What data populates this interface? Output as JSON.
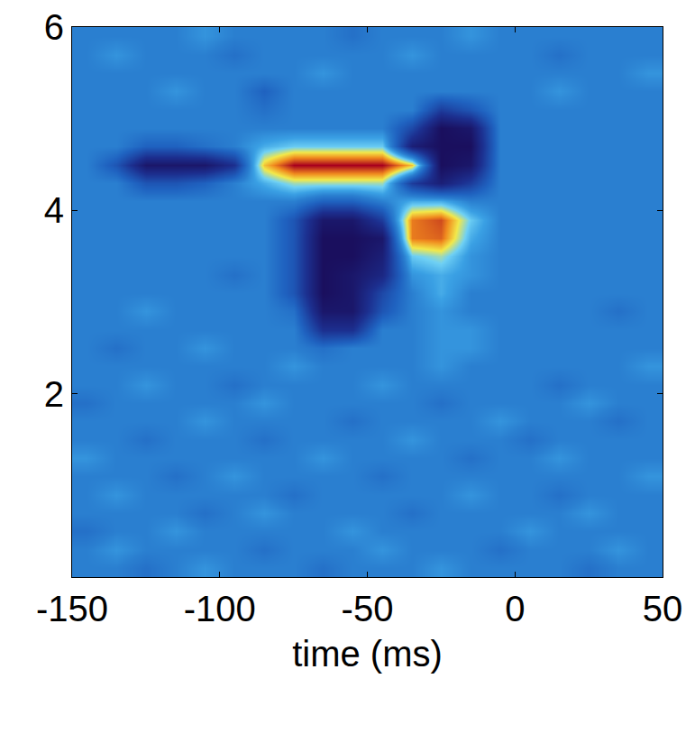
{
  "chart_data": {
    "type": "heatmap",
    "x_label": "time (ms)",
    "x": [
      -145,
      -135,
      -125,
      -115,
      -105,
      -95,
      -85,
      -75,
      -65,
      -55,
      -45,
      -35,
      -25,
      -15,
      -5,
      5,
      15,
      25,
      35,
      45
    ],
    "y": [
      0.1,
      0.3,
      0.5,
      0.7,
      0.9,
      1.1,
      1.3,
      1.5,
      1.7,
      1.9,
      2.1,
      2.3,
      2.5,
      2.7,
      2.9,
      3.1,
      3.3,
      3.5,
      3.7,
      3.9,
      4.1,
      4.3,
      4.5,
      4.7,
      4.9,
      5.1,
      5.3,
      5.5,
      5.7,
      5.9
    ],
    "z": [
      [
        0,
        0,
        -0.1,
        0,
        0.1,
        0,
        0,
        0,
        -0.1,
        0,
        0,
        0,
        0.1,
        0,
        0,
        0,
        0,
        -0.1,
        0,
        0
      ],
      [
        0,
        0.1,
        0,
        0,
        0,
        0,
        -0.1,
        0,
        0,
        0,
        0.1,
        0,
        0,
        0,
        -0.1,
        0,
        0,
        0,
        0.1,
        0
      ],
      [
        -0.1,
        0,
        0,
        0.1,
        0,
        0,
        0,
        0,
        0,
        0.1,
        0,
        0,
        0,
        0,
        0,
        0.1,
        0,
        0,
        0,
        0
      ],
      [
        0,
        0,
        0,
        0,
        -0.1,
        0,
        0.1,
        0,
        0,
        0,
        0,
        -0.1,
        0,
        0,
        0,
        0,
        0,
        0.1,
        0,
        0
      ],
      [
        0,
        0.1,
        0,
        0,
        0,
        0,
        0,
        -0.1,
        0,
        0,
        0,
        0,
        0,
        0.1,
        0,
        0,
        -0.1,
        0,
        0,
        0
      ],
      [
        0,
        0,
        0,
        -0.1,
        0,
        0.1,
        0,
        0,
        0,
        0,
        -0.1,
        0,
        0,
        0,
        0,
        0,
        0,
        0,
        0,
        0.1
      ],
      [
        0.1,
        0,
        0,
        0,
        0,
        0,
        0,
        0,
        0.1,
        0,
        0,
        0,
        0,
        -0.1,
        0,
        0,
        0.1,
        0,
        0,
        0
      ],
      [
        0,
        0,
        -0.1,
        0,
        0,
        0,
        -0.1,
        0,
        0,
        0,
        0,
        0.1,
        0,
        0,
        0,
        -0.1,
        0,
        0,
        0,
        0
      ],
      [
        0,
        0,
        0,
        0,
        0.1,
        0,
        0,
        0,
        0,
        -0.1,
        0,
        0,
        0,
        0,
        0.1,
        0,
        0,
        0,
        -0.1,
        0
      ],
      [
        -0.1,
        0,
        0,
        0,
        0,
        0,
        0.1,
        0,
        0,
        0,
        0,
        0,
        -0.1,
        0,
        0,
        0,
        0,
        0.1,
        0,
        0
      ],
      [
        0,
        0,
        0.1,
        0,
        0,
        -0.1,
        0,
        0,
        0,
        0,
        0.1,
        0,
        0,
        0,
        0,
        0,
        -0.1,
        0,
        0,
        0
      ],
      [
        0,
        0,
        0,
        0,
        0,
        0,
        0,
        0.1,
        0,
        0,
        0,
        0,
        0.1,
        0,
        0,
        0,
        0,
        0,
        0,
        0.1
      ],
      [
        0,
        -0.1,
        0,
        0,
        0.1,
        0,
        0,
        0,
        -0.1,
        0,
        0,
        0,
        0.1,
        0.1,
        0,
        0,
        0,
        0,
        0,
        0
      ],
      [
        0,
        0,
        0,
        0,
        0,
        0,
        0,
        0,
        -0.6,
        -0.6,
        0,
        0,
        0.1,
        0.1,
        0,
        0,
        0,
        0,
        0,
        0
      ],
      [
        0,
        0,
        0.1,
        0,
        0,
        0,
        0,
        -0.1,
        -0.9,
        -0.9,
        -0.3,
        0,
        0.1,
        0,
        0,
        0,
        0,
        0,
        -0.1,
        0
      ],
      [
        0,
        0,
        0,
        0,
        0,
        0,
        0,
        -0.3,
        -1,
        -0.9,
        -0.4,
        0,
        0.2,
        0,
        0,
        0,
        0,
        0,
        0,
        0
      ],
      [
        0,
        0,
        0,
        0,
        0,
        -0.1,
        0,
        -0.3,
        -1,
        -0.9,
        -0.7,
        0.1,
        0.2,
        0.1,
        0,
        0,
        0,
        0,
        0,
        0
      ],
      [
        0,
        0,
        0,
        0,
        0,
        0,
        0,
        -0.3,
        -1,
        -1,
        -0.8,
        0.3,
        0.4,
        0.1,
        0,
        0,
        0,
        0,
        0,
        0
      ],
      [
        0,
        0,
        0,
        0,
        0,
        0,
        0,
        -0.3,
        -1,
        -1,
        -0.9,
        0.75,
        0.8,
        0.2,
        0,
        0,
        0,
        0,
        0,
        0
      ],
      [
        0,
        0,
        0,
        0,
        0,
        0,
        0,
        -0.3,
        -0.9,
        -0.9,
        -0.5,
        0.75,
        0.85,
        0.3,
        0,
        0,
        0,
        0,
        0,
        0
      ],
      [
        0,
        0,
        0,
        0,
        0,
        0,
        0,
        0,
        -0.2,
        -0.2,
        0,
        0.2,
        0.2,
        0,
        0,
        0,
        0,
        0,
        0,
        0
      ],
      [
        0,
        0,
        -0.3,
        -0.3,
        -0.2,
        0,
        0.2,
        0.4,
        0.4,
        0.4,
        0.4,
        -0.5,
        -0.8,
        -0.5,
        0,
        0,
        0,
        0,
        0,
        0
      ],
      [
        0,
        -0.3,
        -0.9,
        -0.9,
        -0.9,
        -0.6,
        0.6,
        1,
        1,
        1,
        1,
        0.6,
        -1,
        -0.9,
        0,
        0,
        0,
        0,
        0,
        0
      ],
      [
        0,
        0,
        -0.2,
        -0.2,
        -0.1,
        0,
        0.2,
        0.3,
        0.3,
        0.3,
        0.3,
        -0.8,
        -1,
        -1,
        0,
        0,
        0,
        0,
        0,
        0
      ],
      [
        0,
        0,
        0,
        0,
        0,
        0,
        0,
        0,
        0,
        0,
        0,
        -0.4,
        -1,
        -0.9,
        0,
        0,
        0,
        0,
        0,
        0
      ],
      [
        0,
        0,
        0,
        0,
        0,
        0,
        -0.1,
        0,
        0,
        0,
        0,
        0,
        -0.5,
        -0.3,
        0,
        0,
        0,
        0,
        0,
        0
      ],
      [
        0,
        0,
        0,
        0.1,
        0,
        0,
        -0.2,
        0,
        0,
        0,
        0,
        0,
        0,
        0,
        0,
        0,
        0.1,
        0,
        0,
        0
      ],
      [
        0,
        0,
        0,
        0,
        0,
        0,
        0,
        0,
        0.1,
        0,
        0,
        0,
        0,
        0,
        0,
        0,
        0,
        0,
        0,
        0.1
      ],
      [
        0,
        0.1,
        0,
        0,
        0,
        -0.1,
        0,
        0,
        0,
        0,
        0,
        0.1,
        0,
        0,
        0,
        0,
        -0.1,
        0,
        0,
        0
      ],
      [
        0,
        0,
        0,
        0,
        0.1,
        0,
        0,
        0,
        0,
        -0.1,
        0,
        0,
        0,
        0.1,
        0,
        0,
        0,
        0,
        0,
        0
      ]
    ],
    "zlim": [
      -1,
      1
    ],
    "xlim": [
      -150,
      50
    ],
    "ylim": [
      0,
      6
    ],
    "xticks": [
      -150,
      -100,
      -50,
      0,
      50
    ],
    "yticks": [
      2,
      4,
      6
    ]
  }
}
